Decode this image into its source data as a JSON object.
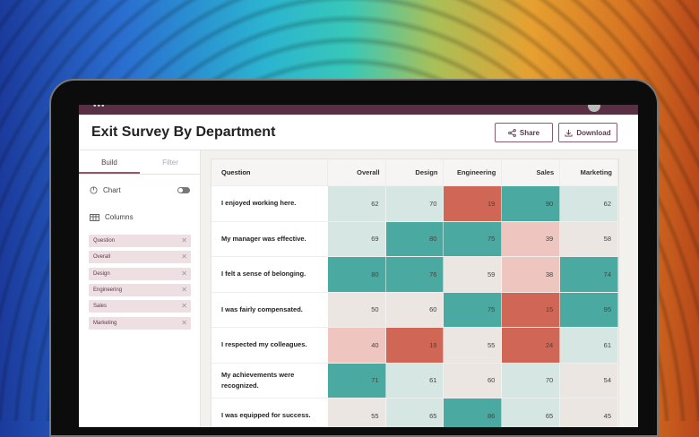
{
  "app": {
    "title": "Exit Survey By Department",
    "share_label": "Share",
    "download_label": "Download"
  },
  "sidebar": {
    "tabs": [
      "Build",
      "Filter"
    ],
    "chart_label": "Chart",
    "chart_toggle": "off",
    "columns_label": "Columns",
    "columns": [
      "Question",
      "Overall",
      "Design",
      "Engineering",
      "Sales",
      "Marketing"
    ]
  },
  "table": {
    "headers": [
      "Question",
      "Overall",
      "Design",
      "Engineering",
      "Sales",
      "Marketing"
    ],
    "rows": [
      {
        "q": "I enjoyed working here.",
        "v": [
          62,
          70,
          19,
          90,
          62
        ]
      },
      {
        "q": "My manager was effective.",
        "v": [
          69,
          80,
          75,
          39,
          58
        ]
      },
      {
        "q": "I felt a sense of belonging.",
        "v": [
          80,
          76,
          59,
          38,
          74
        ]
      },
      {
        "q": "I was fairly compensated.",
        "v": [
          50,
          60,
          75,
          15,
          95
        ]
      },
      {
        "q": "I respected my colleagues.",
        "v": [
          40,
          19,
          55,
          24,
          61
        ]
      },
      {
        "q": "My achievements were recognized.",
        "v": [
          71,
          61,
          60,
          70,
          54
        ]
      },
      {
        "q": "I was equipped for success.",
        "v": [
          55,
          65,
          86,
          65,
          45
        ]
      }
    ]
  },
  "colors": {
    "high": "#4aaaa1",
    "mid_high": "#d6e6e3",
    "neutral": "#ebe6e2",
    "mid_low": "#eec6bf",
    "low": "#d06655",
    "brand": "#5a2f45"
  }
}
